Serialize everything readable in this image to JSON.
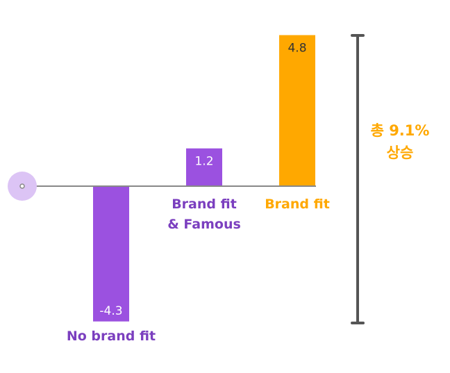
{
  "chart_data": {
    "type": "bar",
    "categories": [
      "No brand fit",
      "Brand fit & Famous",
      "Brand fit"
    ],
    "category_lines": [
      [
        "No brand fit"
      ],
      [
        "Brand fit",
        "& Famous"
      ],
      [
        "Brand fit"
      ]
    ],
    "values": [
      -4.3,
      1.2,
      4.8
    ],
    "value_labels": [
      "-4.3",
      "1.2",
      "4.8"
    ],
    "bar_colors": [
      "#9b51e0",
      "#9b51e0",
      "#ffa800"
    ],
    "label_colors": [
      "#7b3fbf",
      "#7b3fbf",
      "#ffa800"
    ],
    "value_label_colors": [
      "#ffffff",
      "#ffffff",
      "#333333"
    ],
    "annotation": {
      "lines": [
        "총 9.1%",
        "상승"
      ],
      "color": "#ffa800",
      "bracket_color": "#555555"
    },
    "baseline_color": "#888888",
    "marker_color": "#dcc4f5"
  }
}
